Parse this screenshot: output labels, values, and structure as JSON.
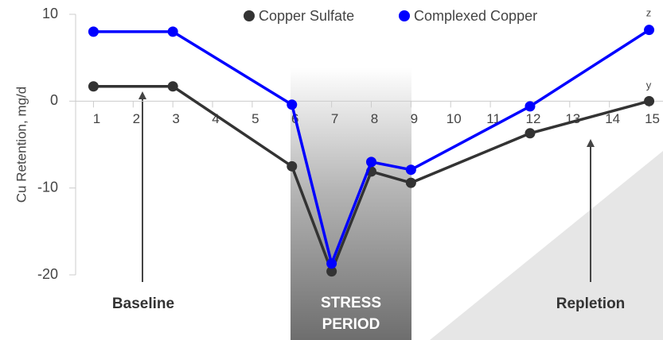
{
  "chart_data": {
    "type": "line",
    "y_label": "Cu Retention, mg/d",
    "x": [
      1,
      3,
      6,
      7,
      8,
      9,
      12,
      15
    ],
    "series": [
      {
        "name": "Copper Sulfate",
        "color": "#333333",
        "values": [
          1.7,
          1.7,
          -7.5,
          -19.6,
          -8.1,
          -9.4,
          -3.7,
          0
        ]
      },
      {
        "name": "Complexed Copper",
        "color": "#0000ff",
        "values": [
          8.0,
          8.0,
          -0.4,
          -18.7,
          -7.0,
          -7.9,
          -0.6,
          8.2
        ]
      }
    ],
    "xlim": [
      0.55,
      15.35
    ],
    "xticks": [
      1,
      2,
      3,
      4,
      5,
      6,
      7,
      8,
      9,
      10,
      11,
      12,
      13,
      14,
      15
    ],
    "ylim": [
      -20,
      10
    ],
    "yticks": [
      -20,
      -10,
      0,
      10
    ],
    "grid": false,
    "legend": "top",
    "annotations": [
      "Baseline",
      "STRESS PERIOD",
      "Repletion",
      "z",
      "y"
    ]
  }
}
